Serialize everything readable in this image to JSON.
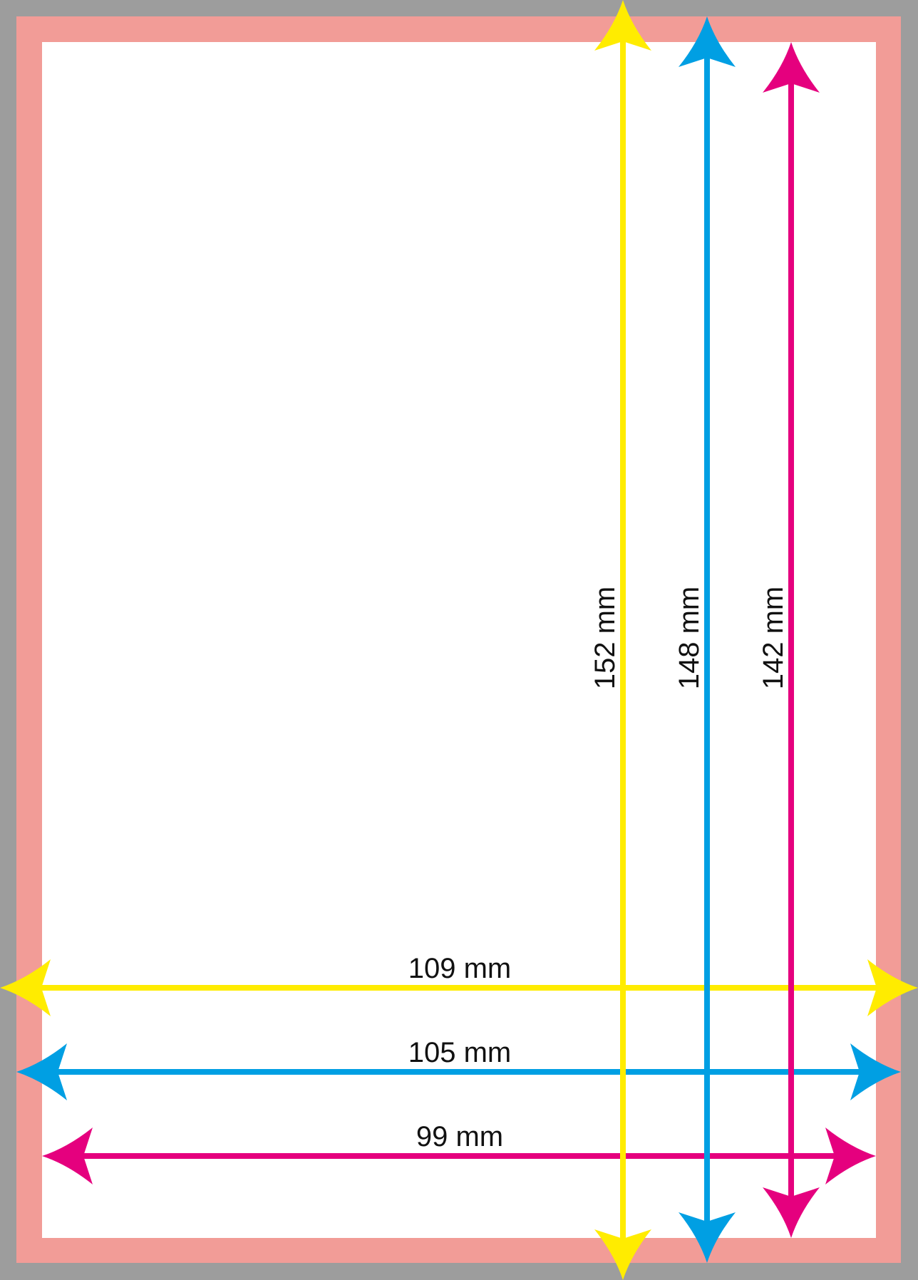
{
  "colors": {
    "outer_border": "#9d9d9d",
    "bleed_band": "#f29c97",
    "page": "#ffffff",
    "yellow": "#ffec00",
    "blue": "#009fe3",
    "magenta": "#e5007e"
  },
  "dimensions": {
    "vertical": [
      {
        "label": "152 mm",
        "color": "yellow"
      },
      {
        "label": "148 mm",
        "color": "blue"
      },
      {
        "label": "142 mm",
        "color": "magenta"
      }
    ],
    "horizontal": [
      {
        "label": "109 mm",
        "color": "yellow"
      },
      {
        "label": "105 mm",
        "color": "blue"
      },
      {
        "label": "99 mm",
        "color": "magenta"
      }
    ]
  }
}
